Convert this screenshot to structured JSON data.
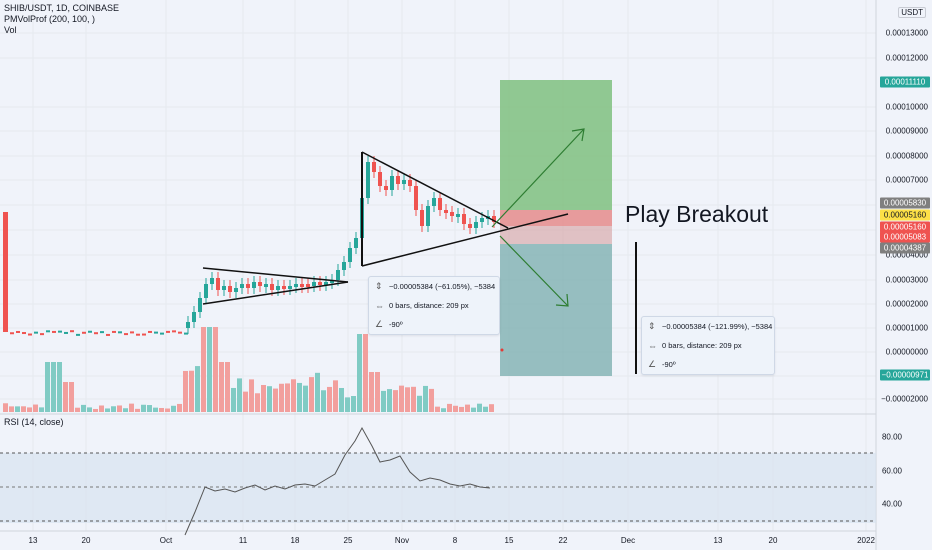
{
  "legend": {
    "symbol": "SHIB/USDT, 1D, COINBASE",
    "indicator": "PMVolProf (200, 100, )",
    "volume": "Vol"
  },
  "rsi": {
    "title": "RSI (14, close)",
    "levels": [
      "80.00",
      "60.00",
      "40.00"
    ]
  },
  "currency": "USDT",
  "price_axis": [
    "0.00013000",
    "0.00012000",
    "0.00010000",
    "0.00009000",
    "0.00008000",
    "0.00007000",
    "0.00004000",
    "0.00003000",
    "0.00002000",
    "0.00001000",
    "0.00000000",
    "−0.00002000"
  ],
  "price_tags": [
    {
      "text": "0.00011110",
      "color": "#26a69a"
    },
    {
      "text": "0.00005830",
      "color": "#7f7f7f"
    },
    {
      "text": "0.00005160",
      "color": "#fde047"
    },
    {
      "text": "0.00005160",
      "color": "#ef5350"
    },
    {
      "text": "0.00005083",
      "color": "#ef5350"
    },
    {
      "text": "0.00004387",
      "color": "#7f7f7f"
    },
    {
      "text": "−0.00000971",
      "color": "#26a69a"
    }
  ],
  "time_axis": [
    "13",
    "20",
    "Oct",
    "11",
    "18",
    "25",
    "Nov",
    "8",
    "15",
    "22",
    "Dec",
    "13",
    "20",
    "2022"
  ],
  "measure_boxes": [
    {
      "line1": "−0.00005384 (−61.05%), −5384",
      "line2": "0 bars, distance: 209 px",
      "line3": "-90º"
    },
    {
      "line1": "−0.00005384 (−121.99%), −5384",
      "line2": "0 bars, distance: 209 px",
      "line3": "-90º"
    }
  ],
  "annotation": "Play Breakout",
  "colors": {
    "up": "#26a69a",
    "down": "#ef5350",
    "profit": "#81c784",
    "loss": "#84b3b5",
    "vol_up": "#80cbc4",
    "vol_down": "#f29f9d"
  }
}
